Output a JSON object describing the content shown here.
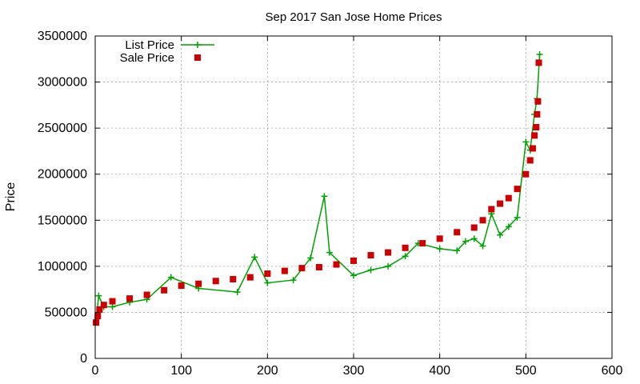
{
  "chart_data": {
    "type": "line",
    "title": "Sep 2017 San Jose Home Prices",
    "xlabel": "",
    "ylabel": "Price",
    "xlim": [
      0,
      600
    ],
    "ylim": [
      0,
      3500000
    ],
    "x_ticks": [
      0,
      100,
      200,
      300,
      400,
      500,
      600
    ],
    "y_ticks": [
      0,
      500000,
      1000000,
      1500000,
      2000000,
      2500000,
      3000000,
      3500000
    ],
    "x_tick_labels": [
      "0",
      "100",
      "200",
      "300",
      "400",
      "500",
      "600"
    ],
    "y_tick_labels": [
      "0",
      "500000",
      "1000000",
      "1500000",
      "2000000",
      "2500000",
      "3000000",
      "3500000"
    ],
    "grid": true,
    "legend_position": "top-left",
    "series": [
      {
        "name": "List Price",
        "style": "linespoints",
        "marker": "plus",
        "color": "#00a000",
        "x": [
          1,
          4,
          10,
          20,
          40,
          60,
          88,
          120,
          165,
          185,
          200,
          230,
          250,
          266,
          272,
          300,
          320,
          340,
          360,
          375,
          400,
          420,
          430,
          440,
          450,
          460,
          470,
          480,
          490,
          500,
          505,
          510,
          513,
          516
        ],
        "y": [
          390000,
          680000,
          560000,
          560000,
          610000,
          640000,
          880000,
          760000,
          720000,
          1100000,
          820000,
          850000,
          1090000,
          1760000,
          1150000,
          900000,
          960000,
          1000000,
          1110000,
          1250000,
          1190000,
          1170000,
          1270000,
          1300000,
          1220000,
          1570000,
          1340000,
          1430000,
          1530000,
          2350000,
          2260000,
          2650000,
          2820000,
          3300000
        ]
      },
      {
        "name": "Sale Price",
        "style": "points",
        "marker": "square",
        "color": "#cc0000",
        "x": [
          1,
          3,
          5,
          10,
          20,
          40,
          60,
          80,
          100,
          120,
          140,
          160,
          180,
          200,
          220,
          240,
          260,
          280,
          300,
          320,
          340,
          360,
          380,
          400,
          420,
          440,
          450,
          460,
          470,
          480,
          490,
          500,
          505,
          508,
          510,
          512,
          513,
          514,
          515
        ],
        "y": [
          390000,
          460000,
          530000,
          580000,
          620000,
          650000,
          690000,
          740000,
          790000,
          810000,
          840000,
          860000,
          880000,
          920000,
          950000,
          980000,
          990000,
          1020000,
          1060000,
          1120000,
          1150000,
          1200000,
          1250000,
          1300000,
          1370000,
          1420000,
          1500000,
          1620000,
          1680000,
          1740000,
          1840000,
          2000000,
          2150000,
          2280000,
          2420000,
          2510000,
          2650000,
          2790000,
          3210000
        ]
      }
    ]
  }
}
